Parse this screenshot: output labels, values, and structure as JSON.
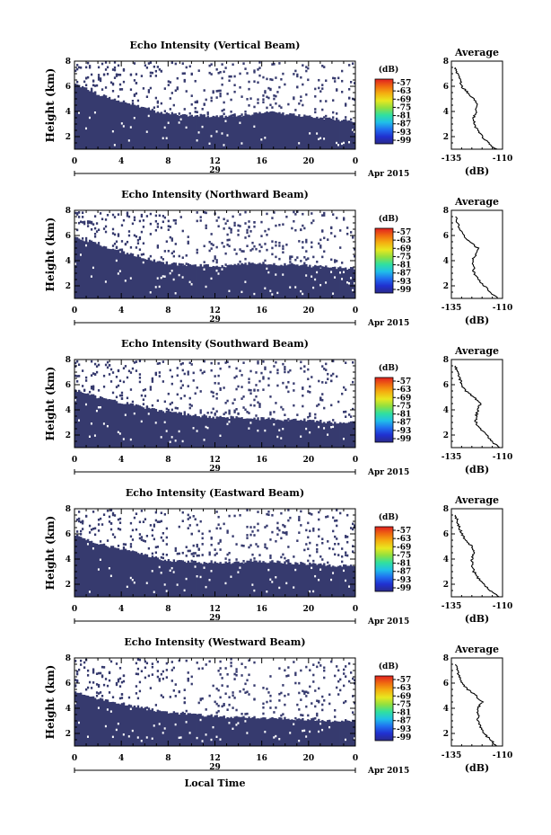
{
  "chart_data": [
    {
      "type": "heatmap",
      "title": "Echo Intensity (Vertical Beam)",
      "ylabel": "Height (km)",
      "ylim": [
        1,
        8
      ],
      "yticks": [
        "2",
        "4",
        "6",
        "8"
      ],
      "xticks": [
        "0",
        "4",
        "8",
        "12",
        "16",
        "20",
        "0"
      ],
      "xlim": [
        0,
        24
      ],
      "date_day": "29",
      "date_label": "Apr 2015",
      "echo_base_km": [
        6.2,
        5.8,
        5.4,
        5.1,
        4.8,
        4.6,
        4.3,
        4.0,
        3.8,
        3.7,
        3.7,
        3.7,
        3.6,
        3.6,
        3.7,
        3.8,
        3.9,
        3.9,
        3.8,
        3.7,
        3.6,
        3.5,
        3.4,
        3.3,
        3.2
      ],
      "colorbar": {
        "unit": "(dB)",
        "ticks": [
          "-57",
          "-63",
          "-69",
          "-75",
          "-81",
          "-87",
          "-93",
          "-99"
        ]
      },
      "average_profile": {
        "title": "Average",
        "xlabel": "(dB)",
        "xticks": [
          "-135",
          "-110"
        ],
        "xlim": [
          -135,
          -110
        ],
        "yticks": [
          "2",
          "4",
          "6",
          "8"
        ],
        "ylim": [
          1,
          8
        ],
        "height_km": [
          1.0,
          1.5,
          2.0,
          2.5,
          3.0,
          3.5,
          4.0,
          4.5,
          5.0,
          5.5,
          6.0,
          6.5,
          7.0,
          7.5
        ],
        "db": [
          -113,
          -117,
          -120,
          -122,
          -124,
          -124,
          -123,
          -122,
          -124,
          -127,
          -130,
          -131,
          -132,
          -133
        ]
      }
    },
    {
      "type": "heatmap",
      "title": "Echo Intensity (Northward Beam)",
      "ylabel": "Height (km)",
      "ylim": [
        1,
        8
      ],
      "yticks": [
        "2",
        "4",
        "6",
        "8"
      ],
      "xticks": [
        "0",
        "4",
        "8",
        "12",
        "16",
        "20",
        "0"
      ],
      "xlim": [
        0,
        24
      ],
      "date_day": "29",
      "date_label": "Apr 2015",
      "echo_base_km": [
        5.9,
        5.6,
        5.3,
        5.0,
        4.7,
        4.5,
        4.2,
        4.0,
        3.8,
        3.7,
        3.7,
        3.6,
        3.6,
        3.6,
        3.7,
        3.8,
        3.8,
        3.7,
        3.7,
        3.6,
        3.6,
        3.5,
        3.5,
        3.4,
        3.4
      ],
      "colorbar": {
        "unit": "(dB)",
        "ticks": [
          "-57",
          "-63",
          "-69",
          "-75",
          "-81",
          "-87",
          "-93",
          "-99"
        ]
      },
      "average_profile": {
        "title": "Average",
        "xlabel": "(dB)",
        "xticks": [
          "-135",
          "-110"
        ],
        "xlim": [
          -135,
          -110
        ],
        "yticks": [
          "2",
          "4",
          "6",
          "8"
        ],
        "ylim": [
          1,
          8
        ],
        "height_km": [
          1.0,
          1.5,
          2.0,
          2.5,
          3.0,
          3.5,
          4.0,
          4.5,
          5.0,
          5.5,
          6.0,
          6.5,
          7.0,
          7.5
        ],
        "db": [
          -112,
          -116,
          -119,
          -122,
          -124,
          -124,
          -125,
          -123,
          -122,
          -126,
          -129,
          -131,
          -132,
          -133
        ]
      }
    },
    {
      "type": "heatmap",
      "title": "Echo Intensity (Southward Beam)",
      "ylabel": "Height (km)",
      "ylim": [
        1,
        8
      ],
      "yticks": [
        "2",
        "4",
        "6",
        "8"
      ],
      "xticks": [
        "0",
        "4",
        "8",
        "12",
        "16",
        "20",
        "0"
      ],
      "xlim": [
        0,
        24
      ],
      "date_day": "29",
      "date_label": "Apr 2015",
      "echo_base_km": [
        5.6,
        5.3,
        5.0,
        4.8,
        4.6,
        4.4,
        4.2,
        4.0,
        3.8,
        3.7,
        3.6,
        3.5,
        3.4,
        3.4,
        3.4,
        3.3,
        3.3,
        3.3,
        3.2,
        3.2,
        3.1,
        3.1,
        3.0,
        3.0,
        3.0
      ],
      "colorbar": {
        "unit": "(dB)",
        "ticks": [
          "-57",
          "-63",
          "-69",
          "-75",
          "-81",
          "-87",
          "-93",
          "-99"
        ]
      },
      "average_profile": {
        "title": "Average",
        "xlabel": "(dB)",
        "xticks": [
          "-135",
          "-110"
        ],
        "xlim": [
          -135,
          -110
        ],
        "yticks": [
          "2",
          "4",
          "6",
          "8"
        ],
        "ylim": [
          1,
          8
        ],
        "height_km": [
          1.0,
          1.5,
          2.0,
          2.5,
          3.0,
          3.5,
          4.0,
          4.5,
          5.0,
          5.5,
          6.0,
          6.5,
          7.0,
          7.5
        ],
        "db": [
          -112,
          -115,
          -118,
          -121,
          -123,
          -123,
          -122,
          -121,
          -124,
          -128,
          -130,
          -131,
          -132,
          -133
        ]
      }
    },
    {
      "type": "heatmap",
      "title": "Echo Intensity (Eastward Beam)",
      "ylabel": "Height (km)",
      "ylim": [
        1,
        8
      ],
      "yticks": [
        "2",
        "4",
        "6",
        "8"
      ],
      "xticks": [
        "0",
        "4",
        "8",
        "12",
        "16",
        "20",
        "0"
      ],
      "xlim": [
        0,
        24
      ],
      "date_day": "29",
      "date_label": "Apr 2015",
      "echo_base_km": [
        5.9,
        5.6,
        5.3,
        5.0,
        4.8,
        4.6,
        4.3,
        4.1,
        3.9,
        3.8,
        3.8,
        3.7,
        3.7,
        3.7,
        3.7,
        3.8,
        3.8,
        3.8,
        3.7,
        3.7,
        3.6,
        3.6,
        3.5,
        3.5,
        3.4
      ],
      "colorbar": {
        "unit": "(dB)",
        "ticks": [
          "-57",
          "-63",
          "-69",
          "-75",
          "-81",
          "-87",
          "-93",
          "-99"
        ]
      },
      "average_profile": {
        "title": "Average",
        "xlabel": "(dB)",
        "xticks": [
          "-135",
          "-110"
        ],
        "xlim": [
          -135,
          -110
        ],
        "yticks": [
          "2",
          "4",
          "6",
          "8"
        ],
        "ylim": [
          1,
          8
        ],
        "height_km": [
          1.0,
          1.5,
          2.0,
          2.5,
          3.0,
          3.5,
          4.0,
          4.5,
          5.0,
          5.5,
          6.0,
          6.5,
          7.0,
          7.5
        ],
        "db": [
          -112,
          -116,
          -119,
          -122,
          -124,
          -125,
          -125,
          -124,
          -125,
          -128,
          -130,
          -131,
          -132,
          -133
        ]
      }
    },
    {
      "type": "heatmap",
      "title": "Echo Intensity (Westward Beam)",
      "ylabel": "Height (km)",
      "ylim": [
        1,
        8
      ],
      "yticks": [
        "2",
        "4",
        "6",
        "8"
      ],
      "xticks": [
        "0",
        "4",
        "8",
        "12",
        "16",
        "20",
        "0"
      ],
      "xlim": [
        0,
        24
      ],
      "date_day": "29",
      "date_label": "Apr 2015",
      "xlabel": "Local Time",
      "echo_base_km": [
        5.4,
        5.1,
        4.8,
        4.6,
        4.4,
        4.2,
        4.0,
        3.8,
        3.7,
        3.6,
        3.5,
        3.4,
        3.4,
        3.3,
        3.3,
        3.3,
        3.2,
        3.2,
        3.2,
        3.1,
        3.1,
        3.1,
        3.0,
        3.0,
        3.0
      ],
      "colorbar": {
        "unit": "(dB)",
        "ticks": [
          "-57",
          "-63",
          "-69",
          "-75",
          "-81",
          "-87",
          "-93",
          "-99"
        ]
      },
      "average_profile": {
        "title": "Average",
        "xlabel": "(dB)",
        "xticks": [
          "-135",
          "-110"
        ],
        "xlim": [
          -135,
          -110
        ],
        "yticks": [
          "2",
          "4",
          "6",
          "8"
        ],
        "ylim": [
          1,
          8
        ],
        "height_km": [
          1.0,
          1.5,
          2.0,
          2.5,
          3.0,
          3.5,
          4.0,
          4.5,
          5.0,
          5.5,
          6.0,
          6.5,
          7.0,
          7.5
        ],
        "db": [
          -113,
          -116,
          -119,
          -121,
          -122,
          -122,
          -122,
          -120,
          -123,
          -127,
          -130,
          -131,
          -132,
          -133
        ]
      }
    }
  ],
  "colors": {
    "echo_fill": "#363a6e",
    "colorbar_gradient": [
      "#e02020",
      "#f06a10",
      "#f4b010",
      "#e8e820",
      "#90e040",
      "#30e0a0",
      "#20c0e8",
      "#2070f0",
      "#2030d0",
      "#2a2a8a"
    ]
  }
}
